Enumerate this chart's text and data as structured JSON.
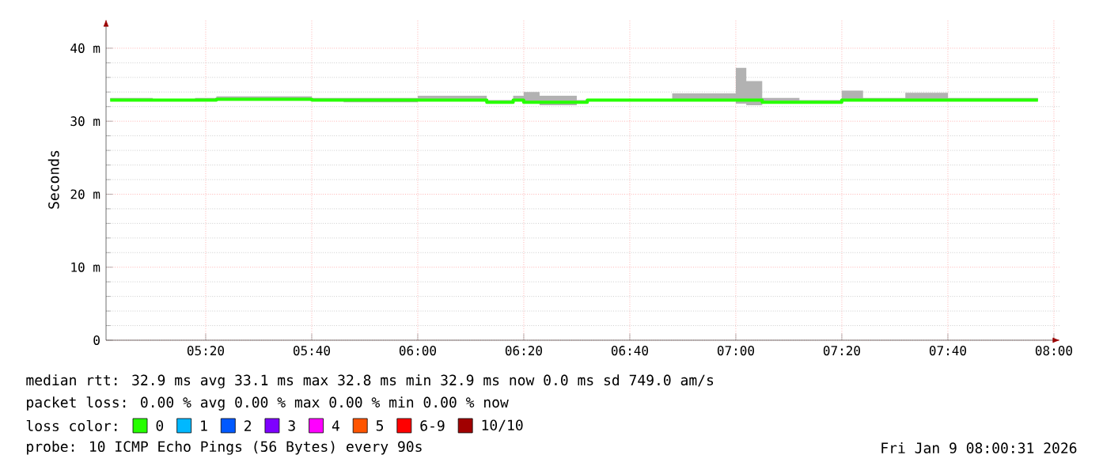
{
  "chart_data": {
    "type": "step",
    "ylabel": "Seconds",
    "legend_title": "loss color:",
    "legend": "bottom",
    "grid": true,
    "x": [
      5.033,
      5.167,
      5.3,
      5.367,
      5.667,
      5.767,
      6.0,
      6.217,
      6.3,
      6.333,
      6.383,
      6.5,
      6.533,
      6.8,
      7.0,
      7.033,
      7.083,
      7.2,
      7.333,
      7.4,
      7.533,
      7.667,
      7.95
    ],
    "xlim": [
      5.02,
      8.02
    ],
    "ylim": [
      0,
      44
    ],
    "xticks": [
      {
        "value": 5.3333,
        "label": "05:20"
      },
      {
        "value": 5.6667,
        "label": "05:40"
      },
      {
        "value": 6,
        "label": "06:00"
      },
      {
        "value": 6.3333,
        "label": "06:20"
      },
      {
        "value": 6.6667,
        "label": "06:40"
      },
      {
        "value": 7,
        "label": "07:00"
      },
      {
        "value": 7.3333,
        "label": "07:20"
      },
      {
        "value": 7.6667,
        "label": "07:40"
      },
      {
        "value": 8,
        "label": "08:00"
      }
    ],
    "yticks": [
      0,
      {
        "value": 10,
        "label": "10 m"
      },
      {
        "value": 20,
        "label": "20 m"
      },
      {
        "value": 30,
        "label": "30 m"
      },
      {
        "value": 40,
        "label": "40 m"
      }
    ],
    "series": [
      {
        "name": "0",
        "color": "#26ff00",
        "values": [
          32.9,
          32.9,
          32.9,
          33.0,
          32.9,
          32.9,
          32.9,
          32.6,
          32.9,
          32.6,
          32.6,
          32.6,
          32.9,
          32.9,
          32.9,
          32.9,
          32.6,
          32.6,
          32.9,
          32.9,
          32.9,
          32.9,
          32.9
        ],
        "lower": [
          32.9,
          32.9,
          32.9,
          33.0,
          32.9,
          32.6,
          32.9,
          32.6,
          32.9,
          32.6,
          32.2,
          32.6,
          32.9,
          32.9,
          32.4,
          32.2,
          32.6,
          32.6,
          32.9,
          32.9,
          32.9,
          32.9,
          32.9
        ],
        "upper": [
          33.2,
          32.9,
          33.2,
          33.4,
          33.2,
          33.2,
          33.5,
          32.9,
          33.5,
          34.0,
          33.5,
          32.9,
          32.9,
          33.8,
          37.3,
          35.5,
          33.2,
          32.9,
          34.2,
          33.2,
          33.9,
          33.2,
          33.4
        ]
      },
      {
        "name": "1",
        "color": "#00b8ff",
        "values": [
          null,
          null,
          null,
          null,
          null,
          null,
          null,
          null,
          null,
          null,
          null,
          null,
          null,
          null,
          null,
          null,
          null,
          null,
          null,
          null,
          null,
          null,
          null
        ]
      },
      {
        "name": "2",
        "color": "#0059ff",
        "values": [
          null,
          null,
          null,
          null,
          null,
          null,
          null,
          null,
          null,
          null,
          null,
          null,
          null,
          null,
          null,
          null,
          null,
          null,
          null,
          null,
          null,
          null,
          null
        ]
      },
      {
        "name": "3",
        "color": "#7e00ff",
        "values": [
          null,
          null,
          null,
          null,
          null,
          null,
          null,
          null,
          null,
          null,
          null,
          null,
          null,
          null,
          null,
          null,
          null,
          null,
          null,
          null,
          null,
          null,
          null
        ]
      },
      {
        "name": "4",
        "color": "#ff00ff",
        "values": [
          null,
          null,
          null,
          null,
          null,
          null,
          null,
          null,
          null,
          null,
          null,
          null,
          null,
          null,
          null,
          null,
          null,
          null,
          null,
          null,
          null,
          null,
          null
        ]
      },
      {
        "name": "5",
        "color": "#ff5500",
        "values": [
          null,
          null,
          null,
          null,
          null,
          null,
          null,
          null,
          null,
          null,
          null,
          null,
          null,
          null,
          null,
          null,
          null,
          null,
          null,
          null,
          null,
          null,
          null
        ]
      },
      {
        "name": "6-9",
        "color": "#ff0000",
        "values": [
          null,
          null,
          null,
          null,
          null,
          null,
          null,
          null,
          null,
          null,
          null,
          null,
          null,
          null,
          null,
          null,
          null,
          null,
          null,
          null,
          null,
          null,
          null
        ]
      },
      {
        "name": "10/10",
        "color": "#a10000",
        "values": [
          null,
          null,
          null,
          null,
          null,
          null,
          null,
          null,
          null,
          null,
          null,
          null,
          null,
          null,
          null,
          null,
          null,
          null,
          null,
          null,
          null,
          null,
          null
        ]
      }
    ],
    "annotations": [
      "median rtt: 32.9 ms avg 33.1 ms max 32.8 ms min 32.9 ms now 0.0 ms sd 749.0 am/s",
      "packet loss: 0.00 % avg 0.00 % max 0.00 % min 0.00 % now",
      "probe: 10 ICMP Echo Pings (56 Bytes) every 90s",
      "Fri Jan 9 08:00:31 2026"
    ]
  }
}
